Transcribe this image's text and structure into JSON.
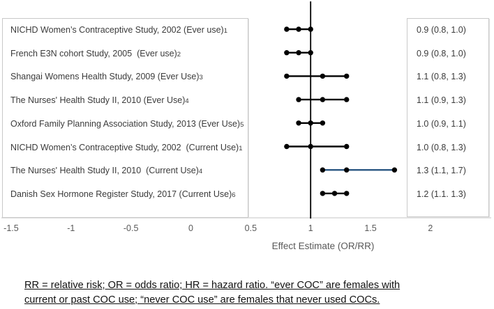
{
  "chart_data": {
    "type": "scatter",
    "subtype": "forest-plot",
    "xlabel": "Effect Estimate (OR/RR)",
    "xlim": [
      -1.5,
      2.5
    ],
    "x_ticks": [
      -1.5,
      -1,
      -0.5,
      0,
      0.5,
      1,
      1.5,
      2
    ],
    "reference_line_x": 1,
    "grid": false,
    "marker_color": "#000000",
    "studies": [
      {
        "label": "NICHD Women’s Contraceptive Study, 2002 (Ever use)",
        "ref": "1",
        "estimate": 0.9,
        "ci_low": 0.8,
        "ci_high": 1.0,
        "value_label": "0.9 (0.8, 1.0)",
        "line_color": "#000000"
      },
      {
        "label": "French E3N cohort Study, 2005  (Ever use)",
        "ref": "2",
        "estimate": 0.9,
        "ci_low": 0.8,
        "ci_high": 1.0,
        "value_label": "0.9 (0.8, 1.0)",
        "line_color": "#000000"
      },
      {
        "label": "Shangai Womens Health Study, 2009 (Ever Use)",
        "ref": "3",
        "estimate": 1.1,
        "ci_low": 0.8,
        "ci_high": 1.3,
        "value_label": "1.1 (0.8, 1.3)",
        "line_color": "#000000"
      },
      {
        "label": "The Nurses' Health Study II, 2010 (Ever Use)",
        "ref": "4",
        "estimate": 1.1,
        "ci_low": 0.9,
        "ci_high": 1.3,
        "value_label": "1.1 (0.9, 1.3)",
        "line_color": "#000000"
      },
      {
        "label": "Oxford Family Planning Association Study, 2013 (Ever Use)",
        "ref": "5",
        "estimate": 1.0,
        "ci_low": 0.9,
        "ci_high": 1.1,
        "value_label": "1.0 (0.9, 1.1)",
        "line_color": "#000000"
      },
      {
        "label": "NICHD Women’s Contraceptive Study, 2002  (Current Use)",
        "ref": "1",
        "estimate": 1.0,
        "ci_low": 0.8,
        "ci_high": 1.3,
        "value_label": "1.0 (0.8, 1.3)",
        "line_color": "#000000"
      },
      {
        "label": "The Nurses' Health Study II, 2010  (Current Use)",
        "ref": "4",
        "estimate": 1.3,
        "ci_low": 1.1,
        "ci_high": 1.7,
        "value_label": "1.3 (1.1, 1.7)",
        "line_color": "#2a5783"
      },
      {
        "label": "Danish Sex Hormone Register Study, 2017 (Current Use)",
        "ref": "6",
        "estimate": 1.2,
        "ci_low": 1.1,
        "ci_high": 1.3,
        "value_label": "1.2 (1.1. 1.3)",
        "line_color": "#000000"
      }
    ]
  },
  "colors": {
    "marker": "#000000",
    "reference_line": "#000000",
    "highlight_line": "#2a5783",
    "axis_line": "#d9d9d9",
    "box_border": "#c9c9c9",
    "tick_text": "#595959",
    "label_text": "#3b3b3b"
  },
  "footnote": {
    "line1": "RR = relative risk; OR = odds ratio; HR = hazard ratio. “ever COC” are females with",
    "line2": "current or past COC use; “never COC use” are females that never used COCs."
  }
}
